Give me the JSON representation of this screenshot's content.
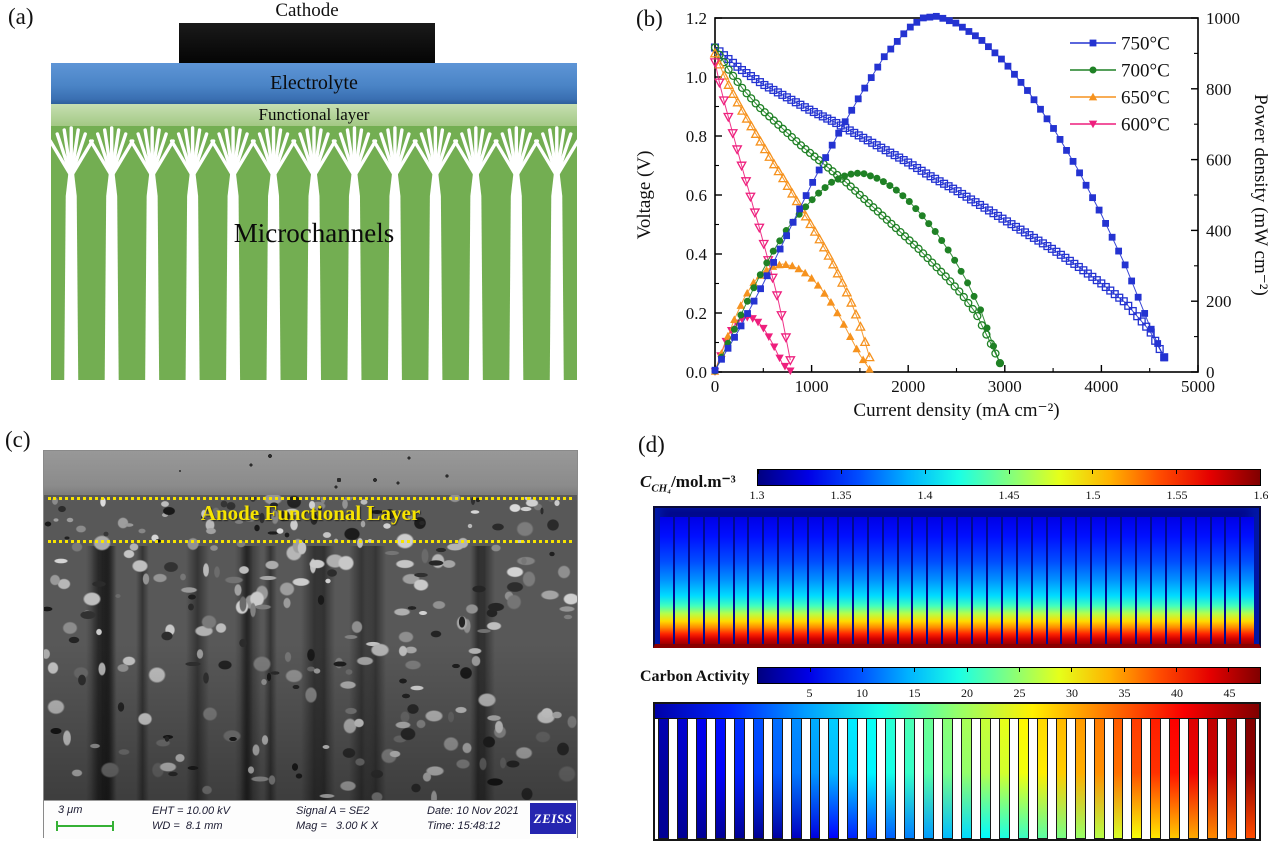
{
  "chart_data": {
    "type": "line",
    "title": "",
    "xlabel": "Current density (mA cm⁻²)",
    "ylabel_left": "Voltage (V)",
    "ylabel_right": "Power density (mW cm⁻²)",
    "xlim": [
      0,
      5000
    ],
    "ylim_left": [
      0,
      1.2
    ],
    "ylim_right": [
      0,
      1000
    ],
    "x_ticks": [
      0,
      1000,
      2000,
      3000,
      4000,
      5000
    ],
    "x_minor_step": 500,
    "y_ticks_left": [
      "0.0",
      "0.2",
      "0.4",
      "0.6",
      "0.8",
      "1.0",
      "1.2"
    ],
    "y_minor_left": 0.1,
    "y_ticks_right": [
      0,
      200,
      400,
      600,
      800,
      1000
    ],
    "y_minor_right": 100,
    "grid": false,
    "legend_position": "top-right",
    "series": [
      {
        "name": "750°C",
        "color": "#2433d1",
        "marker": "square",
        "voltage": [
          [
            0,
            1.1
          ],
          [
            250,
            1.03
          ],
          [
            500,
            0.975
          ],
          [
            750,
            0.93
          ],
          [
            1000,
            0.885
          ],
          [
            1250,
            0.845
          ],
          [
            1500,
            0.8
          ],
          [
            1750,
            0.755
          ],
          [
            2000,
            0.71
          ],
          [
            2250,
            0.66
          ],
          [
            2500,
            0.615
          ],
          [
            2750,
            0.565
          ],
          [
            3000,
            0.515
          ],
          [
            3250,
            0.465
          ],
          [
            3500,
            0.415
          ],
          [
            3750,
            0.36
          ],
          [
            4000,
            0.3
          ],
          [
            4250,
            0.235
          ],
          [
            4500,
            0.14
          ],
          [
            4650,
            0.05
          ]
        ],
        "power": [
          [
            0,
            5
          ],
          [
            250,
            120
          ],
          [
            500,
            250
          ],
          [
            750,
            390
          ],
          [
            1000,
            530
          ],
          [
            1250,
            660
          ],
          [
            1500,
            780
          ],
          [
            1750,
            890
          ],
          [
            2000,
            970
          ],
          [
            2150,
            1000
          ],
          [
            2300,
            1005
          ],
          [
            2500,
            985
          ],
          [
            2750,
            940
          ],
          [
            3000,
            875
          ],
          [
            3250,
            790
          ],
          [
            3500,
            690
          ],
          [
            3750,
            575
          ],
          [
            4000,
            445
          ],
          [
            4250,
            300
          ],
          [
            4500,
            130
          ],
          [
            4650,
            40
          ]
        ]
      },
      {
        "name": "700°C",
        "color": "#1f8125",
        "marker": "circle",
        "voltage": [
          [
            0,
            1.1
          ],
          [
            150,
            1.02
          ],
          [
            300,
            0.955
          ],
          [
            450,
            0.9
          ],
          [
            600,
            0.855
          ],
          [
            750,
            0.81
          ],
          [
            900,
            0.765
          ],
          [
            1050,
            0.725
          ],
          [
            1200,
            0.685
          ],
          [
            1350,
            0.645
          ],
          [
            1500,
            0.6
          ],
          [
            1650,
            0.555
          ],
          [
            1800,
            0.51
          ],
          [
            1950,
            0.465
          ],
          [
            2100,
            0.42
          ],
          [
            2250,
            0.37
          ],
          [
            2400,
            0.32
          ],
          [
            2550,
            0.265
          ],
          [
            2700,
            0.2
          ],
          [
            2850,
            0.1
          ],
          [
            2950,
            0.03
          ]
        ],
        "power": [
          [
            0,
            3
          ],
          [
            150,
            90
          ],
          [
            300,
            180
          ],
          [
            450,
            265
          ],
          [
            600,
            340
          ],
          [
            750,
            405
          ],
          [
            900,
            455
          ],
          [
            1050,
            500
          ],
          [
            1200,
            535
          ],
          [
            1350,
            555
          ],
          [
            1450,
            562
          ],
          [
            1550,
            560
          ],
          [
            1700,
            545
          ],
          [
            1850,
            520
          ],
          [
            2000,
            485
          ],
          [
            2150,
            440
          ],
          [
            2300,
            390
          ],
          [
            2450,
            330
          ],
          [
            2600,
            260
          ],
          [
            2750,
            175
          ],
          [
            2900,
            60
          ],
          [
            2950,
            25
          ]
        ]
      },
      {
        "name": "650°C",
        "color": "#f6921e",
        "marker": "triangle-up",
        "voltage": [
          [
            0,
            1.08
          ],
          [
            100,
            1.0
          ],
          [
            200,
            0.935
          ],
          [
            300,
            0.875
          ],
          [
            400,
            0.82
          ],
          [
            500,
            0.765
          ],
          [
            600,
            0.71
          ],
          [
            700,
            0.66
          ],
          [
            800,
            0.605
          ],
          [
            900,
            0.55
          ],
          [
            1000,
            0.495
          ],
          [
            1100,
            0.44
          ],
          [
            1200,
            0.38
          ],
          [
            1300,
            0.315
          ],
          [
            1400,
            0.245
          ],
          [
            1500,
            0.16
          ],
          [
            1600,
            0.05
          ]
        ],
        "power": [
          [
            0,
            2
          ],
          [
            100,
            78
          ],
          [
            200,
            148
          ],
          [
            300,
            208
          ],
          [
            400,
            253
          ],
          [
            500,
            283
          ],
          [
            600,
            298
          ],
          [
            700,
            305
          ],
          [
            800,
            300
          ],
          [
            900,
            287
          ],
          [
            1000,
            265
          ],
          [
            1100,
            235
          ],
          [
            1200,
            197
          ],
          [
            1300,
            152
          ],
          [
            1400,
            100
          ],
          [
            1500,
            48
          ],
          [
            1600,
            8
          ]
        ]
      },
      {
        "name": "600°C",
        "color": "#ee1f7d",
        "marker": "triangle-down",
        "voltage": [
          [
            0,
            1.05
          ],
          [
            50,
            0.975
          ],
          [
            100,
            0.91
          ],
          [
            150,
            0.85
          ],
          [
            200,
            0.79
          ],
          [
            250,
            0.73
          ],
          [
            300,
            0.67
          ],
          [
            350,
            0.615
          ],
          [
            400,
            0.555
          ],
          [
            450,
            0.5
          ],
          [
            500,
            0.44
          ],
          [
            550,
            0.38
          ],
          [
            600,
            0.315
          ],
          [
            650,
            0.25
          ],
          [
            700,
            0.175
          ],
          [
            780,
            0.04
          ]
        ],
        "power": [
          [
            0,
            1
          ],
          [
            50,
            42
          ],
          [
            100,
            80
          ],
          [
            150,
            110
          ],
          [
            200,
            132
          ],
          [
            250,
            146
          ],
          [
            300,
            153
          ],
          [
            350,
            155
          ],
          [
            400,
            150
          ],
          [
            450,
            140
          ],
          [
            500,
            124
          ],
          [
            550,
            103
          ],
          [
            600,
            78
          ],
          [
            650,
            50
          ],
          [
            700,
            22
          ],
          [
            780,
            3
          ]
        ]
      }
    ]
  },
  "panel_a": {
    "label": "(a)",
    "cathode": "Cathode",
    "electrolyte": "Electrolyte",
    "functional_layer": "Functional layer",
    "microchannels": "Microchannels",
    "channel_count": 13,
    "colors": {
      "cathode": "#0d0d0d",
      "electrolyte": "#4a84c6",
      "functional": "#b3d296",
      "anode": "#73ae52",
      "channel": "#ffffff"
    }
  },
  "panel_b": {
    "label": "(b)"
  },
  "panel_c": {
    "label": "(c)",
    "annotation": "Anode Functional Layer",
    "scale_bar": "3 μm",
    "info": {
      "eht": "EHT = 10.00 kV",
      "wd": "WD =  8.1 mm",
      "signal": "Signal A = SE2",
      "mag": "Mag =   3.00 K X",
      "date": "Date: 10 Nov 2021",
      "time": "Time: 15:48:12",
      "brand": "ZEISS"
    }
  },
  "panel_d": {
    "label": "(d)",
    "methane": {
      "label_c": "C",
      "label_sub": "CH₄",
      "label_unit": "/mol.m⁻³",
      "ticks": [
        "1.3",
        "1.35",
        "1.4",
        "1.45",
        "1.5",
        "1.55",
        "1.6"
      ],
      "range": [
        1.3,
        1.6
      ],
      "colormap": "jet",
      "channels": 40
    },
    "carbon": {
      "label": "Carbon Activity",
      "ticks": [
        5,
        10,
        15,
        20,
        25,
        30,
        35,
        40,
        45
      ],
      "range": [
        0,
        48
      ],
      "colormap": "jet",
      "bars": 32
    }
  }
}
